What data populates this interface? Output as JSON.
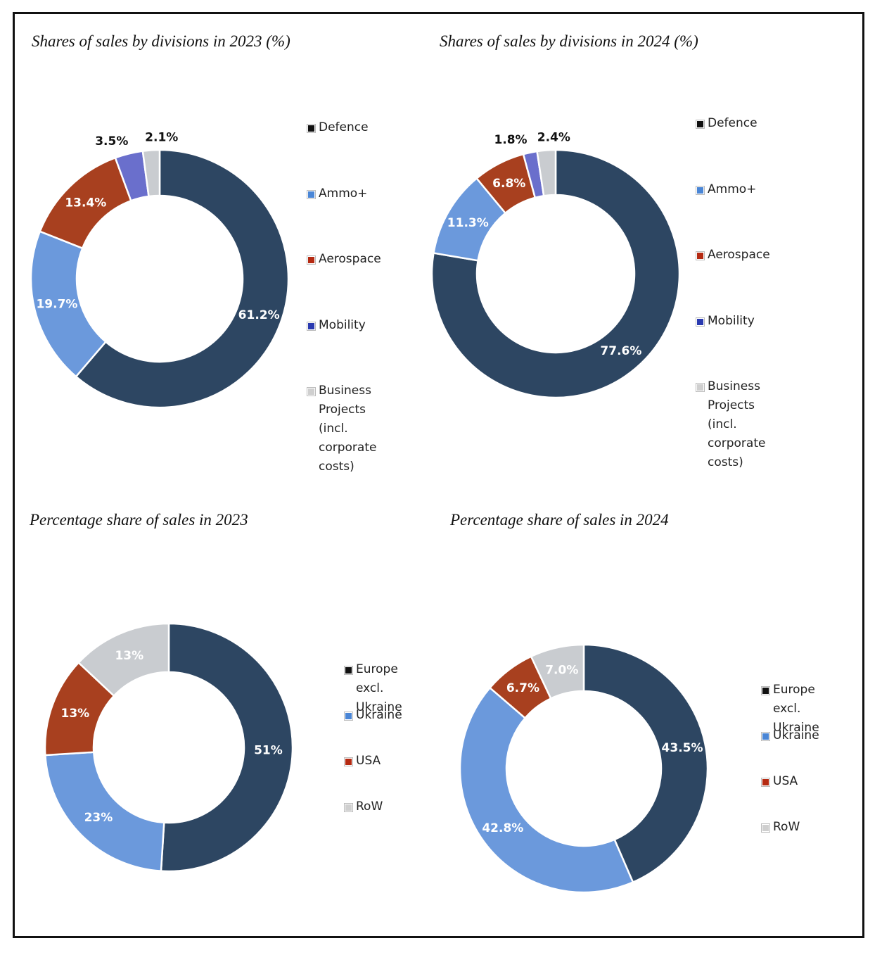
{
  "colors": {
    "navy": "#2d4662",
    "light_blue": "#6b99dc",
    "rust": "#a8401f",
    "purple": "#6a6fcc",
    "gray": "#c9ccd0",
    "swatch_black": "#111111",
    "swatch_blue": "#4a86d6",
    "swatch_red": "#b52a12",
    "swatch_darkblue": "#2a3ab0",
    "swatch_gray": "#cfcfcf"
  },
  "chart_data": [
    {
      "type": "pie",
      "variant": "donut",
      "title": "Shares of sales by divisions in 2023 (%)",
      "categories": [
        "Defence",
        "Ammo+",
        "Aerospace",
        "Mobility",
        "Business Projects\n(incl. corporate\ncosts)"
      ],
      "values": [
        61.2,
        19.7,
        13.4,
        3.5,
        2.1
      ],
      "labels": [
        "61.2%",
        "19.7%",
        "13.4%",
        "3.5%",
        "2.1%"
      ],
      "legend_position": "right"
    },
    {
      "type": "pie",
      "variant": "donut",
      "title": "Shares of sales by divisions in 2024 (%)",
      "categories": [
        "Defence",
        "Ammo+",
        "Aerospace",
        "Mobility",
        "Business Projects\n(incl. corporate\ncosts)"
      ],
      "values": [
        77.6,
        11.3,
        6.8,
        1.8,
        2.4
      ],
      "labels": [
        "77.6%",
        "11.3%",
        "6.8%",
        "1.8%",
        "2.4%"
      ],
      "legend_position": "right"
    },
    {
      "type": "pie",
      "variant": "donut",
      "title": "Percentage share of sales in 2023",
      "categories": [
        "Europe excl.\nUkraine",
        "Ukraine",
        "USA",
        "RoW"
      ],
      "values": [
        51,
        23,
        13,
        13
      ],
      "labels": [
        "51%",
        "23%",
        "13%",
        "13%"
      ],
      "legend_position": "right"
    },
    {
      "type": "pie",
      "variant": "donut",
      "title": "Percentage share of sales in 2024",
      "categories": [
        "Europe excl.\nUkraine",
        "Ukraine",
        "USA",
        "RoW"
      ],
      "values": [
        43.5,
        42.8,
        6.7,
        7.0
      ],
      "labels": [
        "43.5%",
        "42.8%",
        "6.7%",
        "7.0%"
      ],
      "legend_position": "right"
    }
  ]
}
